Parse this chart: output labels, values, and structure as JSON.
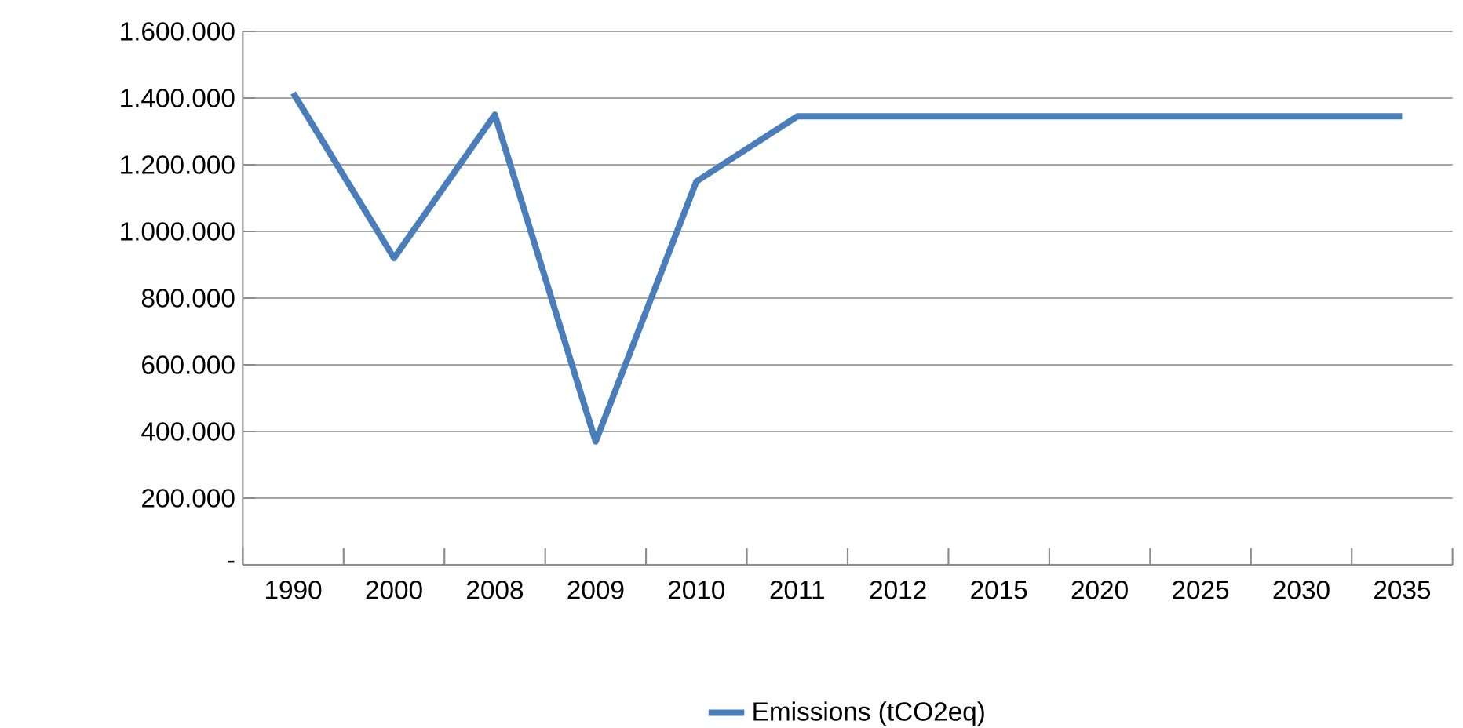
{
  "chart_data": {
    "type": "line",
    "categories": [
      "1990",
      "2000",
      "2008",
      "2009",
      "2010",
      "2011",
      "2012",
      "2015",
      "2020",
      "2025",
      "2030",
      "2035"
    ],
    "series": [
      {
        "name": "Emissions (tCO2eq)",
        "color": "#4a7ebb",
        "values": [
          1415000,
          920000,
          1350000,
          370000,
          1150000,
          1345000,
          1345000,
          1345000,
          1345000,
          1345000,
          1345000,
          1345000
        ]
      }
    ],
    "ylim": [
      0,
      1600000
    ],
    "yticks": [
      {
        "value": 0,
        "label": "-"
      },
      {
        "value": 200000,
        "label": "200.000"
      },
      {
        "value": 400000,
        "label": "400.000"
      },
      {
        "value": 600000,
        "label": "600.000"
      },
      {
        "value": 800000,
        "label": "800.000"
      },
      {
        "value": 1000000,
        "label": "1.000.000"
      },
      {
        "value": 1200000,
        "label": "1.200.000"
      },
      {
        "value": 1400000,
        "label": "1.400.000"
      },
      {
        "value": 1600000,
        "label": "1.600.000"
      }
    ],
    "grid": "y",
    "legend": "bottom",
    "marker": "none",
    "line_style": "solid"
  }
}
